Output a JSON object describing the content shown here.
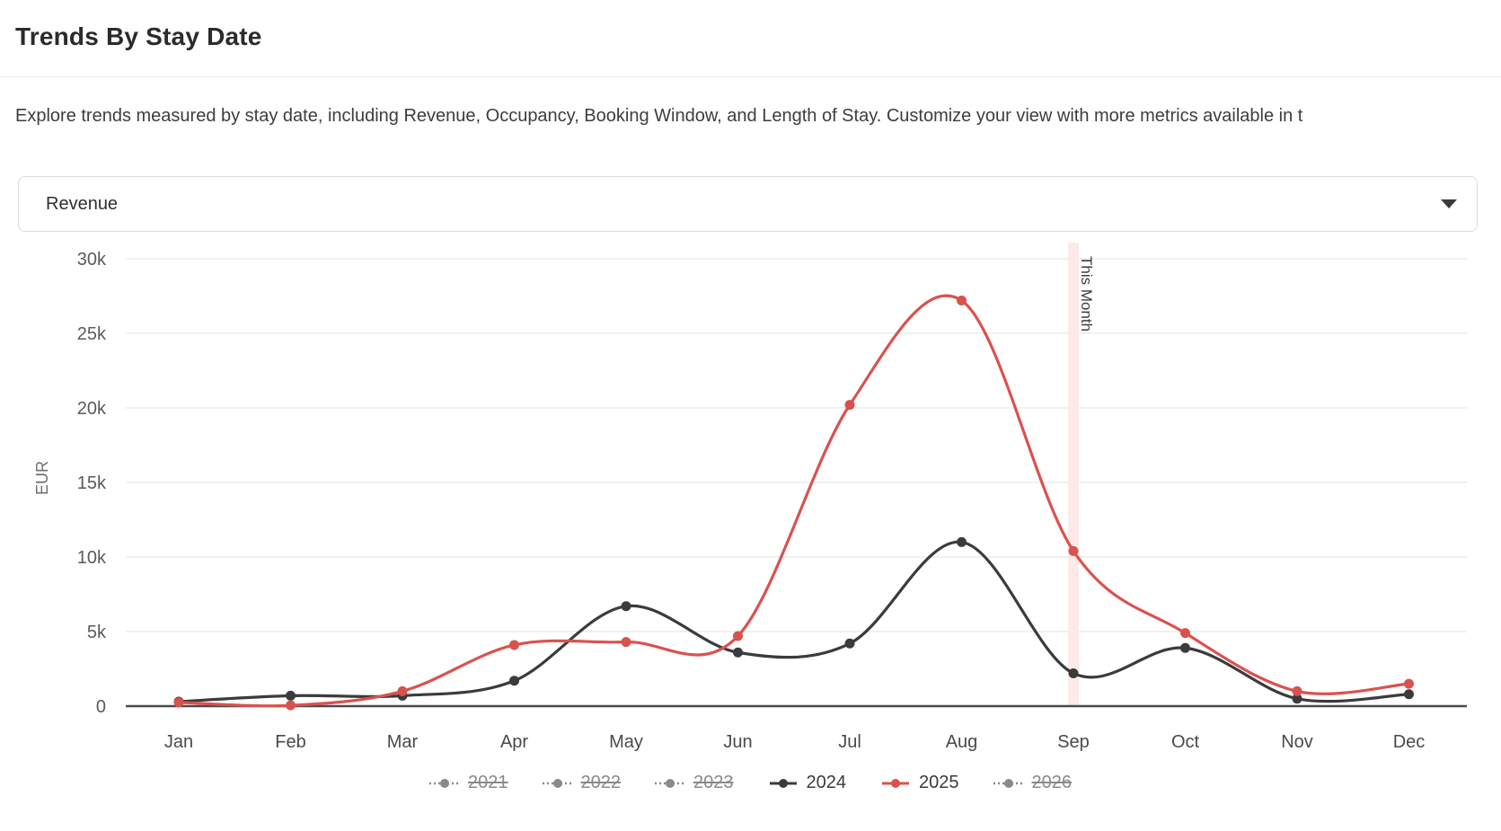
{
  "header": {
    "title": "Trends By Stay Date"
  },
  "description": "Explore trends measured by stay date, including Revenue, Occupancy, Booking Window, and Length of Stay. Customize your view with more metrics available in t",
  "controls": {
    "metric_select": {
      "selected": "Revenue"
    }
  },
  "chart_data": {
    "type": "line",
    "x": [
      "Jan",
      "Feb",
      "Mar",
      "Apr",
      "May",
      "Jun",
      "Jul",
      "Aug",
      "Sep",
      "Oct",
      "Nov",
      "Dec"
    ],
    "ylabel": "EUR",
    "ylim": [
      0,
      30000
    ],
    "ytick_step": 5000,
    "yticks_labels": [
      "0",
      "5k",
      "10k",
      "15k",
      "20k",
      "25k",
      "30k"
    ],
    "grid": true,
    "legend_position": "bottom",
    "annotation": {
      "label": "This Month",
      "x_index": 8
    },
    "series": [
      {
        "name": "2021",
        "active": false,
        "values": null
      },
      {
        "name": "2022",
        "active": false,
        "values": null
      },
      {
        "name": "2023",
        "active": false,
        "values": null
      },
      {
        "name": "2024",
        "active": true,
        "color": "#3b3b3b",
        "values": [
          300,
          700,
          700,
          1700,
          6700,
          3600,
          4200,
          11000,
          2200,
          3900,
          500,
          800
        ]
      },
      {
        "name": "2025",
        "active": true,
        "color": "#d9524e",
        "values": [
          250,
          50,
          1000,
          4100,
          4300,
          4700,
          20200,
          27200,
          10400,
          4900,
          1000,
          1500
        ]
      },
      {
        "name": "2026",
        "active": false,
        "values": null
      }
    ],
    "colors": {
      "disabled": "#8a8a8a",
      "grid": "#ececec",
      "axis_line": "#4a4a4a",
      "tick_text": "#5a5a5a",
      "annotation_band": "#fceae9"
    }
  }
}
